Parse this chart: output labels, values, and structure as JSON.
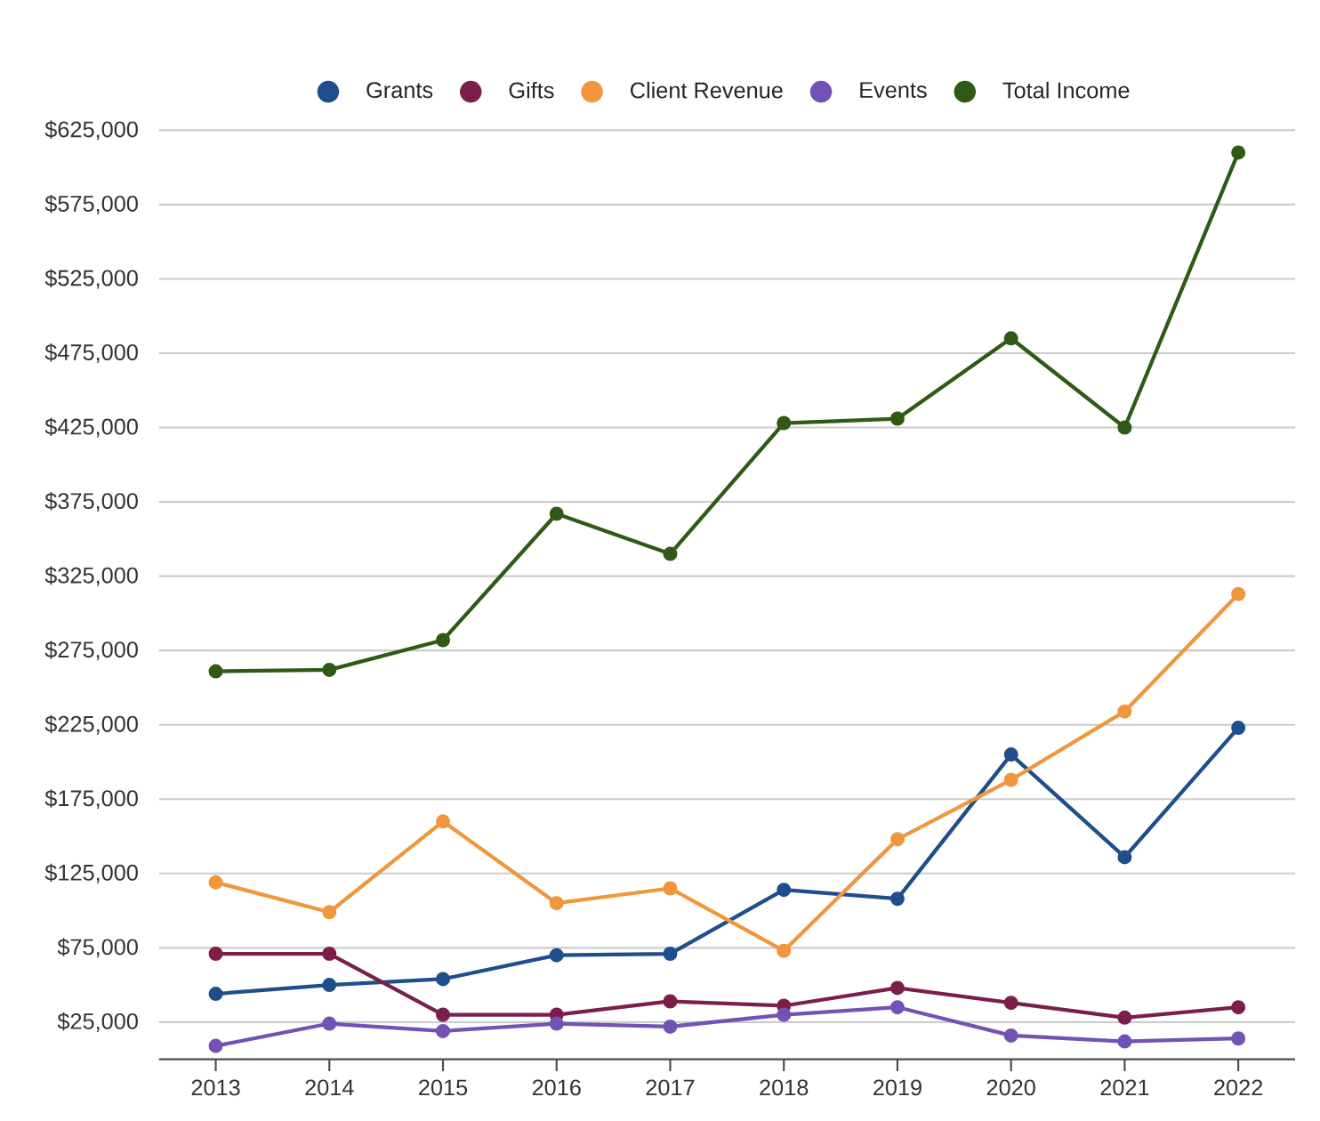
{
  "chart_data": {
    "type": "line",
    "categories": [
      "2013",
      "2014",
      "2015",
      "2016",
      "2017",
      "2018",
      "2019",
      "2020",
      "2021",
      "2022"
    ],
    "series": [
      {
        "name": "Grants",
        "color": "#1f4e8c",
        "values": [
          44000,
          50000,
          54000,
          70000,
          71000,
          114000,
          108000,
          205000,
          136000,
          223000
        ]
      },
      {
        "name": "Gifts",
        "color": "#7b1f4a",
        "values": [
          71000,
          71000,
          30000,
          30000,
          39000,
          36000,
          48000,
          38000,
          28000,
          35000
        ]
      },
      {
        "name": "Client Revenue",
        "color": "#f0963c",
        "values": [
          119000,
          99000,
          160000,
          105000,
          115000,
          73000,
          148000,
          188000,
          234000,
          313000
        ]
      },
      {
        "name": "Events",
        "color": "#7352b5",
        "values": [
          9000,
          24000,
          19000,
          24000,
          22000,
          30000,
          35000,
          16000,
          12000,
          14000
        ]
      },
      {
        "name": "Total Income",
        "color": "#2e5a16",
        "values": [
          261000,
          262000,
          282000,
          367000,
          340000,
          428000,
          431000,
          485000,
          425000,
          610000
        ]
      }
    ],
    "ylim": [
      0,
      625000
    ],
    "yticks": [
      {
        "value": 25000,
        "label": "$25,000"
      },
      {
        "value": 75000,
        "label": "$75,000"
      },
      {
        "value": 125000,
        "label": "$125,000"
      },
      {
        "value": 175000,
        "label": "$175,000"
      },
      {
        "value": 225000,
        "label": "$225,000"
      },
      {
        "value": 275000,
        "label": "$275,000"
      },
      {
        "value": 325000,
        "label": "$325,000"
      },
      {
        "value": 375000,
        "label": "$375,000"
      },
      {
        "value": 425000,
        "label": "$425,000"
      },
      {
        "value": 475000,
        "label": "$475,000"
      },
      {
        "value": 525000,
        "label": "$525,000"
      },
      {
        "value": 575000,
        "label": "$575,000"
      },
      {
        "value": 625000,
        "label": "$625,000"
      }
    ],
    "grid": "y",
    "legend": "top",
    "marker": "circle",
    "line_style": "solid"
  }
}
